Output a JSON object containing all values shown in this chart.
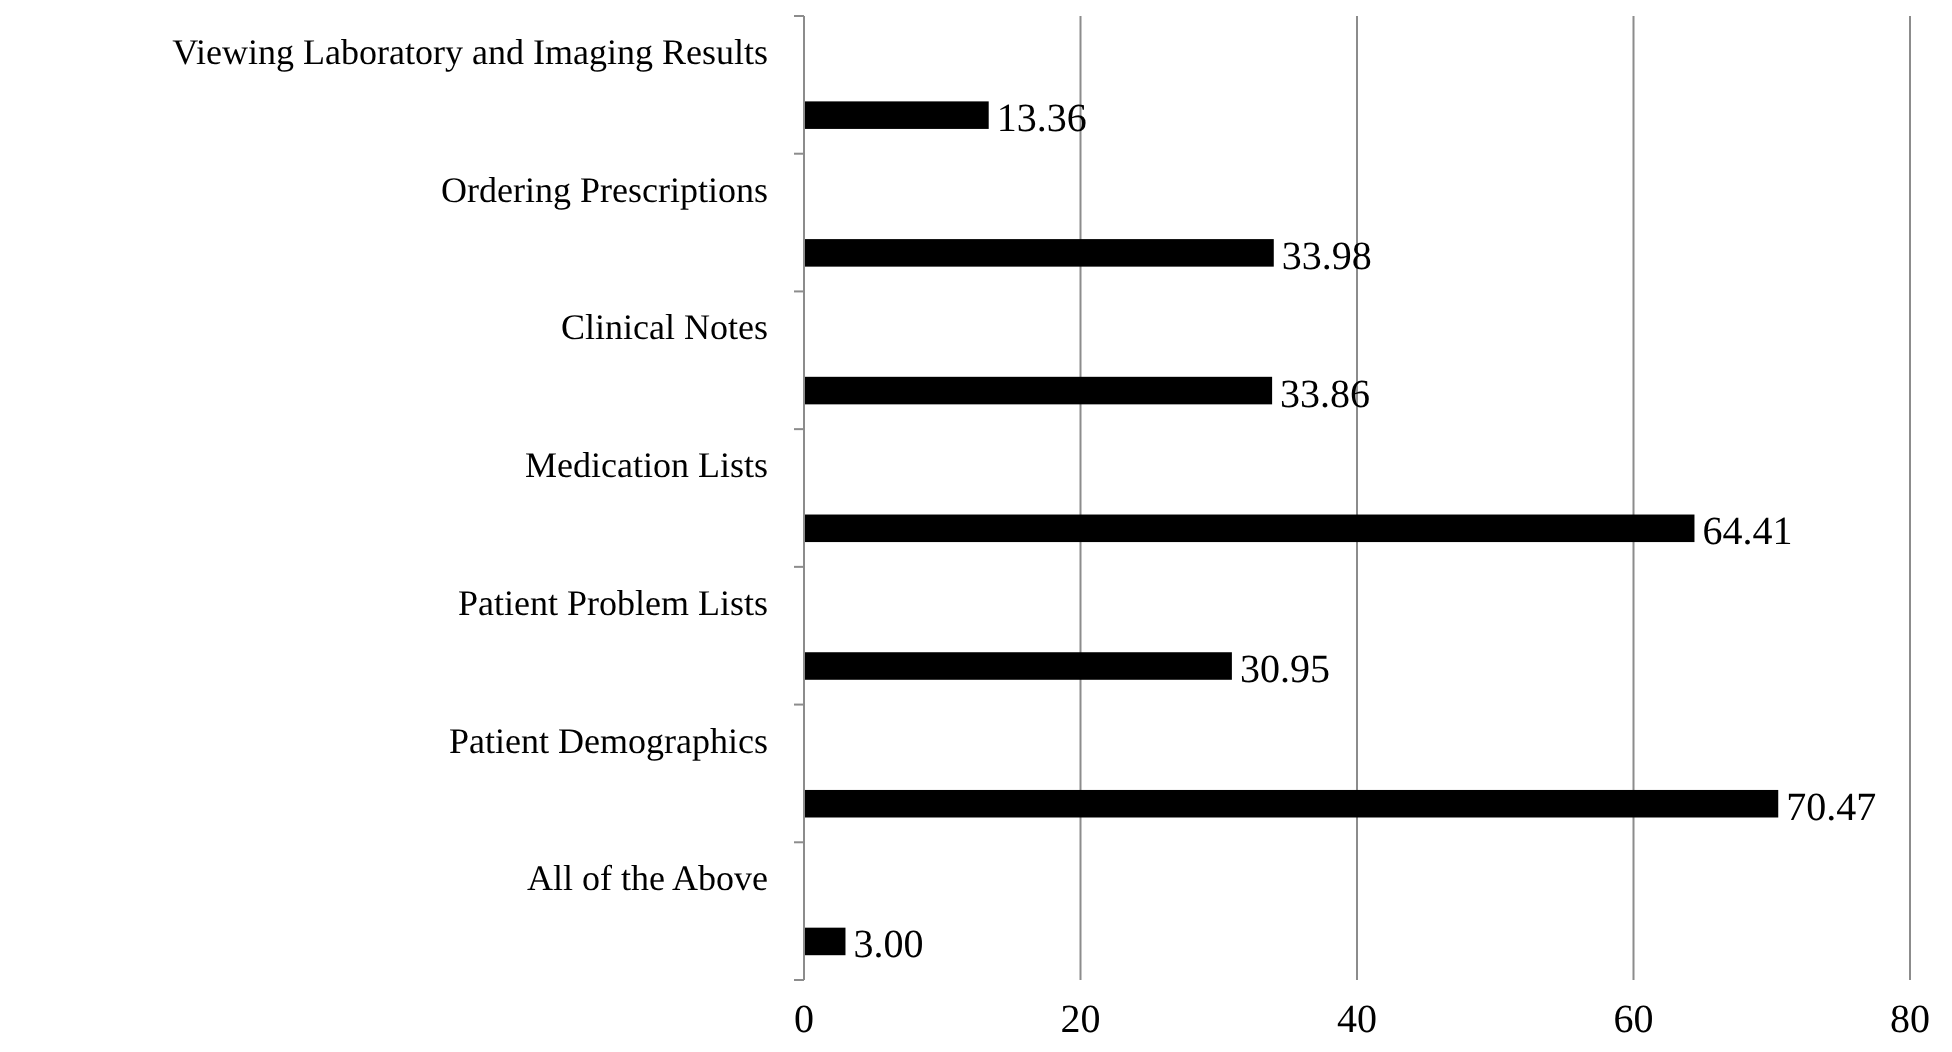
{
  "chart_data": {
    "type": "bar",
    "orientation": "horizontal",
    "categories": [
      "Viewing Laboratory and Imaging Results",
      "Ordering Prescriptions",
      "Clinical Notes",
      "Medication Lists",
      "Patient Problem Lists",
      "Patient Demographics",
      "All of the Above"
    ],
    "values": [
      13.36,
      33.98,
      33.86,
      64.41,
      30.95,
      70.47,
      3.0
    ],
    "value_labels": [
      "13.36",
      "33.98",
      "33.86",
      "64.41",
      "30.95",
      "70.47",
      "3.00"
    ],
    "color": "#000000",
    "xlim": [
      0,
      80
    ],
    "xticks": [
      0,
      20,
      40,
      60,
      80
    ],
    "grid": "x"
  }
}
